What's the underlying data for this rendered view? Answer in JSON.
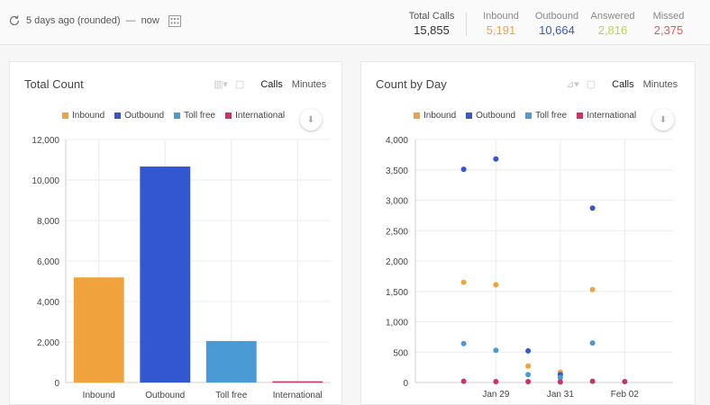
{
  "header": {
    "range_start": "5 days ago (rounded)",
    "range_sep": "—",
    "range_end": "now",
    "stats": {
      "total": {
        "label": "Total Calls",
        "value": "15,855"
      },
      "inbound": {
        "label": "Inbound",
        "value": "5,191"
      },
      "outbound": {
        "label": "Outbound",
        "value": "10,664"
      },
      "answered": {
        "label": "Answered",
        "value": "2,816"
      },
      "missed": {
        "label": "Missed",
        "value": "2,375"
      }
    }
  },
  "colors": {
    "inbound": "#f0a33c",
    "outbound": "#3257d1",
    "tollfree": "#4a9ad6",
    "international": "#c7336b",
    "answered": "#c7dd5c",
    "missed": "#e05a5a"
  },
  "panels": {
    "total": {
      "title": "Total Count",
      "calls": "Calls",
      "minutes": "Minutes"
    },
    "byday": {
      "title": "Count by Day",
      "calls": "Calls",
      "minutes": "Minutes"
    }
  },
  "legend": [
    "Inbound",
    "Outbound",
    "Toll free",
    "International"
  ],
  "chart_data": [
    {
      "type": "bar",
      "title": "Total Count",
      "categories": [
        "Inbound",
        "Outbound",
        "Toll free",
        "International"
      ],
      "values": [
        5191,
        10664,
        2050,
        60
      ],
      "ylim": [
        0,
        12000
      ],
      "yticks": [
        "0",
        "2,000",
        "4,000",
        "6,000",
        "8,000",
        "10,000",
        "12,000"
      ],
      "grid": true,
      "legend_placement": "top"
    },
    {
      "type": "scatter",
      "title": "Count by Day",
      "ylim": [
        0,
        4000
      ],
      "yticks": [
        "0",
        "500",
        "1,000",
        "1,500",
        "2,000",
        "2,500",
        "3,000",
        "3,500",
        "4,000"
      ],
      "xticks": [
        "Jan 29",
        "Jan 31",
        "Feb 02"
      ],
      "x_dates": [
        "Jan 27",
        "Jan 28",
        "Jan 29",
        "Jan 30",
        "Jan 31",
        "Feb 01",
        "Feb 02",
        "Feb 03"
      ],
      "series": [
        {
          "name": "Inbound",
          "x": [
            "Jan 28",
            "Jan 29",
            "Jan 30",
            "Jan 31",
            "Feb 01"
          ],
          "y": [
            1650,
            1610,
            270,
            170,
            1530
          ]
        },
        {
          "name": "Outbound",
          "x": [
            "Jan 28",
            "Jan 29",
            "Jan 30",
            "Jan 31",
            "Feb 01"
          ],
          "y": [
            3510,
            3680,
            520,
            130,
            2870
          ]
        },
        {
          "name": "Toll free",
          "x": [
            "Jan 28",
            "Jan 29",
            "Jan 30",
            "Jan 31",
            "Feb 01"
          ],
          "y": [
            640,
            530,
            130,
            80,
            650
          ]
        },
        {
          "name": "International",
          "x": [
            "Jan 28",
            "Jan 29",
            "Jan 30",
            "Jan 31",
            "Feb 01",
            "Feb 02"
          ],
          "y": [
            20,
            15,
            15,
            10,
            20,
            15
          ]
        }
      ],
      "grid": true,
      "legend_placement": "top"
    }
  ]
}
